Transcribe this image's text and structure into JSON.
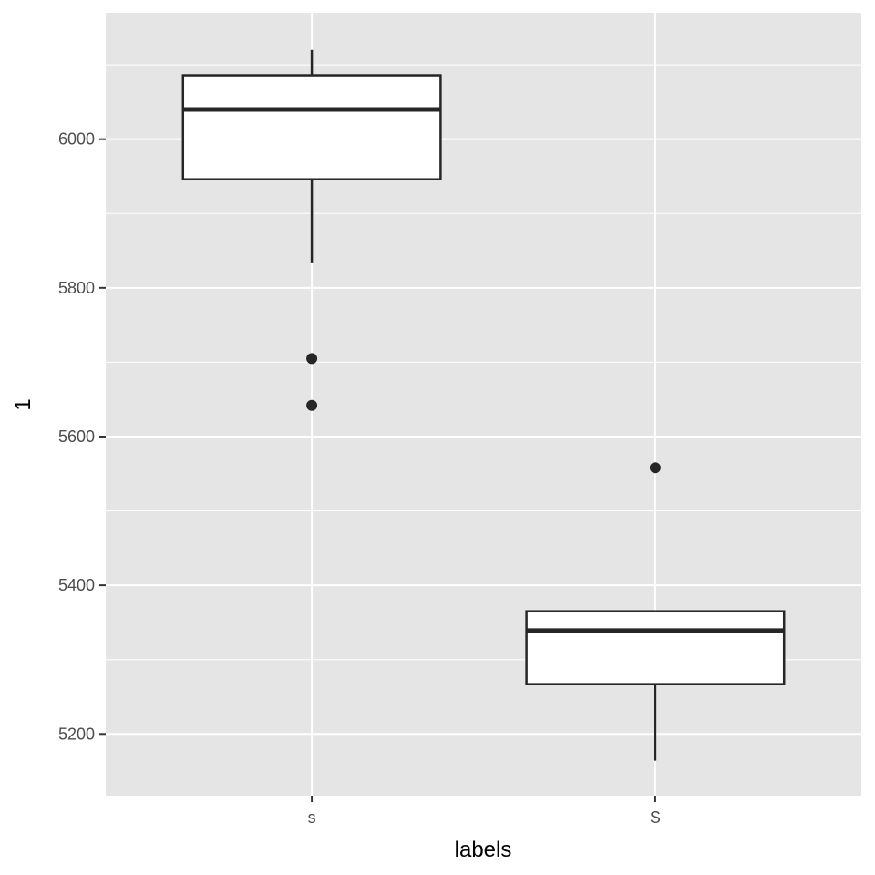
{
  "chart_data": {
    "type": "boxplot",
    "xlabel": "labels",
    "ylabel": "1",
    "categories": [
      "s",
      "S"
    ],
    "y_ticks": [
      5200,
      5400,
      5600,
      5800,
      6000
    ],
    "ylim": [
      5117,
      6170
    ],
    "grid": true,
    "legend": "none",
    "boxes": [
      {
        "category": "s",
        "whisker_low": 5833,
        "q1": 5946,
        "median": 6040,
        "q3": 6086,
        "whisker_high": 6120,
        "outliers": [
          5705,
          5642
        ]
      },
      {
        "category": "S",
        "whisker_low": 5164,
        "q1": 5267,
        "median": 5339,
        "q3": 5365,
        "whisker_high": 5365,
        "outliers": [
          5558
        ]
      }
    ]
  },
  "colors": {
    "panel_background": "#e5e5e5",
    "grid_line": "#ffffff",
    "box_fill": "#ffffff",
    "box_stroke": "#262626",
    "outlier": "#262626",
    "tick_text": "#4d4d4d",
    "axis_title": "#000000"
  }
}
